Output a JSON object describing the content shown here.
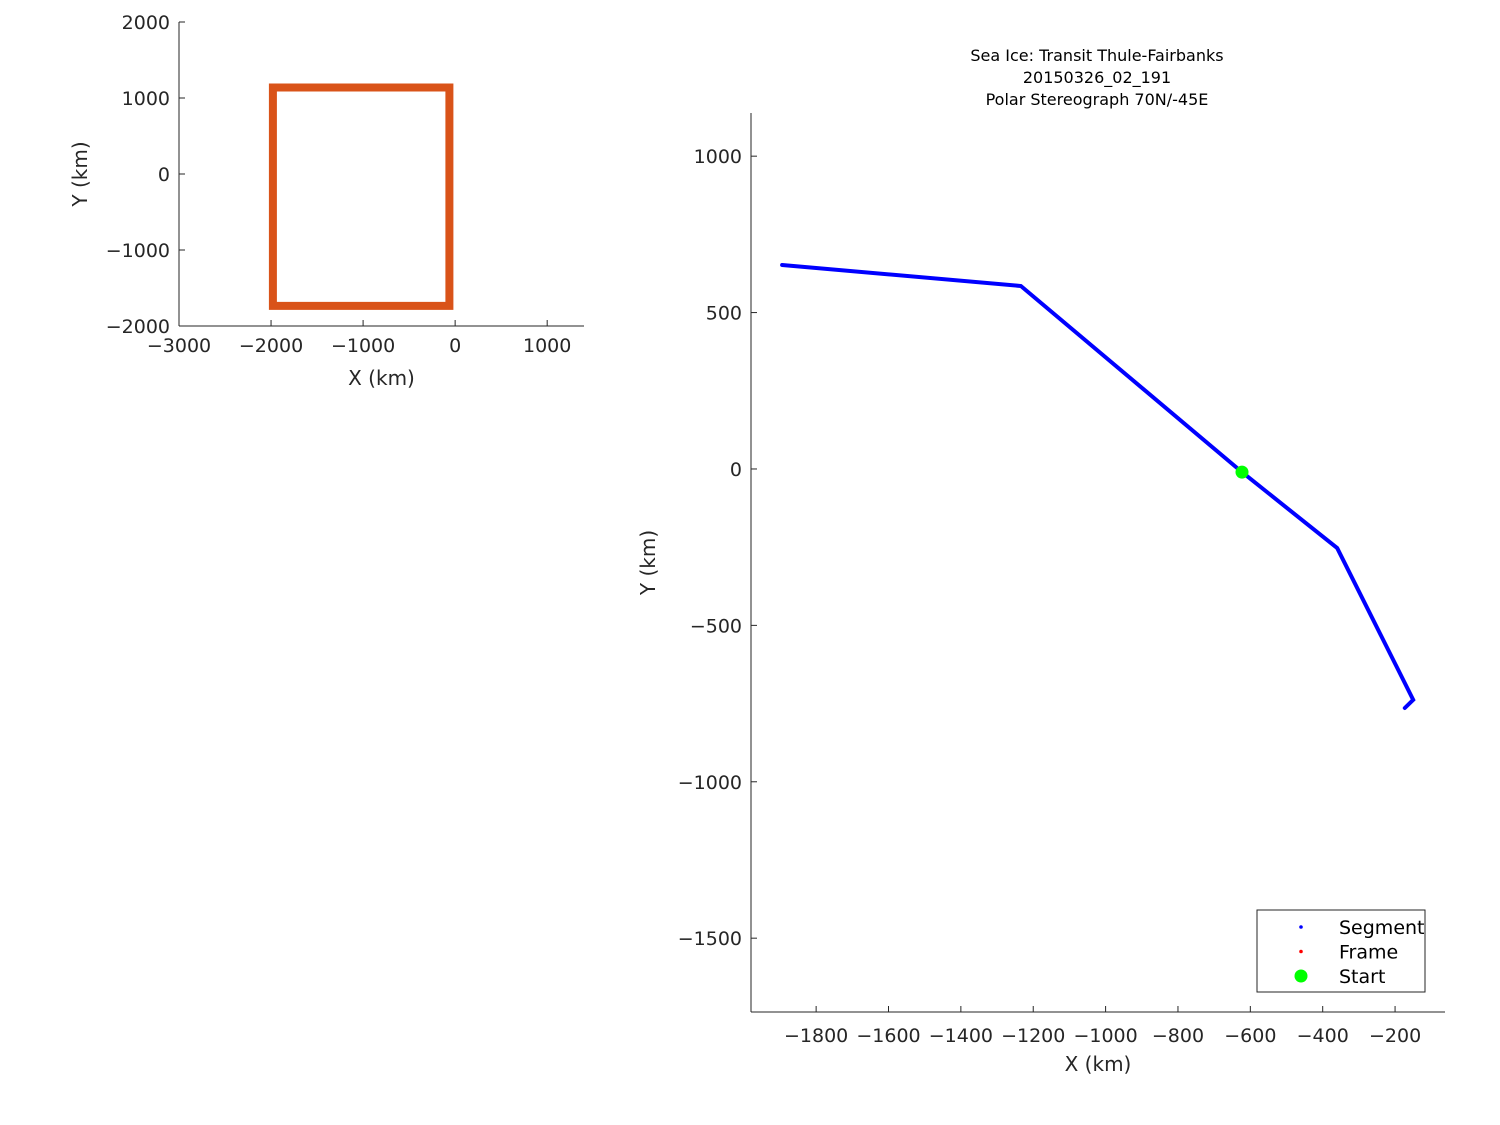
{
  "chart_data": [
    {
      "type": "line",
      "title": "",
      "xlabel": "X (km)",
      "ylabel": "Y (km)",
      "xlim": [
        -3000,
        1400
      ],
      "ylim": [
        -2000,
        2000
      ],
      "xticks": [
        -3000,
        -2000,
        -1000,
        0,
        1000
      ],
      "yticks": [
        -2000,
        -1000,
        0,
        1000,
        2000
      ],
      "xtick_labels": [
        "−3000",
        "−2000",
        "−1000",
        "0",
        "1000"
      ],
      "ytick_labels": [
        "−2000",
        "−1000",
        "0",
        "1000",
        "2000"
      ],
      "grid": false,
      "series": [
        {
          "color": "#D95319",
          "x": [
            -1980,
            -62,
            -62,
            -1980,
            -1980
          ],
          "y": [
            1138,
            1138,
            -1736,
            -1736,
            1138
          ]
        }
      ]
    },
    {
      "type": "line",
      "title": [
        "Sea Ice: Transit Thule-Fairbanks",
        "20150326_02_191",
        "Polar Stereograph 70N/-45E"
      ],
      "xlabel": "X (km)",
      "ylabel": "Y (km)",
      "xlim": [
        -1980,
        -62
      ],
      "ylim": [
        -1736,
        1138
      ],
      "xticks": [
        -1800,
        -1600,
        -1400,
        -1200,
        -1000,
        -800,
        -600,
        -400,
        -200
      ],
      "yticks": [
        -1500,
        -1000,
        -500,
        0,
        500,
        1000
      ],
      "xtick_labels": [
        "−1800",
        "−1600",
        "−1400",
        "−1200",
        "−1000",
        "−800",
        "−600",
        "−400",
        "−200"
      ],
      "ytick_labels": [
        "−1500",
        "−1000",
        "−500",
        "0",
        "500",
        "1000"
      ],
      "grid": false,
      "legend_placement": "bottom-right",
      "series": [
        {
          "name": "Segment",
          "color": "#0000FF",
          "x": [
            -1894,
            -1234,
            -623,
            -360,
            -150,
            -173
          ],
          "y": [
            652,
            585,
            -10,
            -253,
            -738,
            -764
          ]
        },
        {
          "name": "Frame",
          "color": "#FF0000",
          "x": [],
          "y": []
        },
        {
          "name": "Start",
          "color": "#00FF00",
          "marker": "star",
          "x": [
            -623
          ],
          "y": [
            -10
          ]
        }
      ]
    }
  ]
}
